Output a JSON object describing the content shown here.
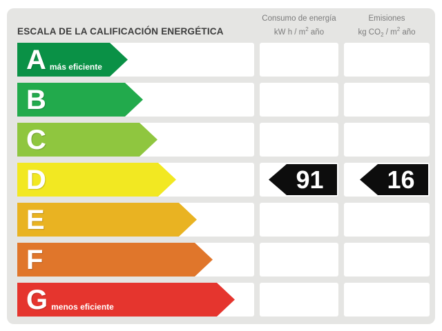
{
  "header": {
    "title": "ESCALA DE LA CALIFICACIÓN ENERGÉTICA",
    "columns": [
      {
        "name": "Consumo de energía",
        "unit": {
          "pre": "kW h / m",
          "sup": "2",
          "post": " año"
        }
      },
      {
        "name": "Emisiones",
        "unit": {
          "pre": "kg CO",
          "sub": "2",
          "mid": " / m",
          "sup": "2",
          "post": " año"
        }
      }
    ]
  },
  "scale": [
    {
      "letter": "A",
      "note": "más eficiente",
      "color": "#0a9146",
      "arrow_width": 160
    },
    {
      "letter": "B",
      "note": "",
      "color": "#22aa4c",
      "arrow_width": 182
    },
    {
      "letter": "C",
      "note": "",
      "color": "#8fc63f",
      "arrow_width": 203
    },
    {
      "letter": "D",
      "note": "",
      "color": "#f2e822",
      "arrow_width": 230
    },
    {
      "letter": "E",
      "note": "",
      "color": "#e9b322",
      "arrow_width": 260
    },
    {
      "letter": "F",
      "note": "",
      "color": "#e0762b",
      "arrow_width": 283
    },
    {
      "letter": "G",
      "note": "menos eficiente",
      "color": "#e5352e",
      "arrow_width": 315
    }
  ],
  "rating": {
    "letter": "D",
    "consumo_value": "91",
    "emisiones_value": "16",
    "marker_color": "#0d0d0d",
    "marker_text_color": "#ffffff"
  },
  "chart_data": {
    "type": "bar",
    "title": "ESCALA DE LA CALIFICACIÓN ENERGÉTICA",
    "categories": [
      "A",
      "B",
      "C",
      "D",
      "E",
      "F",
      "G"
    ],
    "values": [
      160,
      182,
      203,
      230,
      260,
      283,
      315
    ],
    "bar_colors": [
      "#0a9146",
      "#22aa4c",
      "#8fc63f",
      "#f2e822",
      "#e9b322",
      "#e0762b",
      "#e5352e"
    ],
    "annotations": [
      {
        "category": "D",
        "series": "Consumo de energía (kW h / m² año)",
        "value": 91
      },
      {
        "category": "D",
        "series": "Emisiones (kg CO₂ / m² año)",
        "value": 16
      }
    ],
    "xlabel": "",
    "ylabel": "",
    "legend": "none",
    "grid": false,
    "note": "Energy efficiency rating scale A (más eficiente) to G (menos eficiente); rated class D with consumption 91 and emissions 16"
  }
}
